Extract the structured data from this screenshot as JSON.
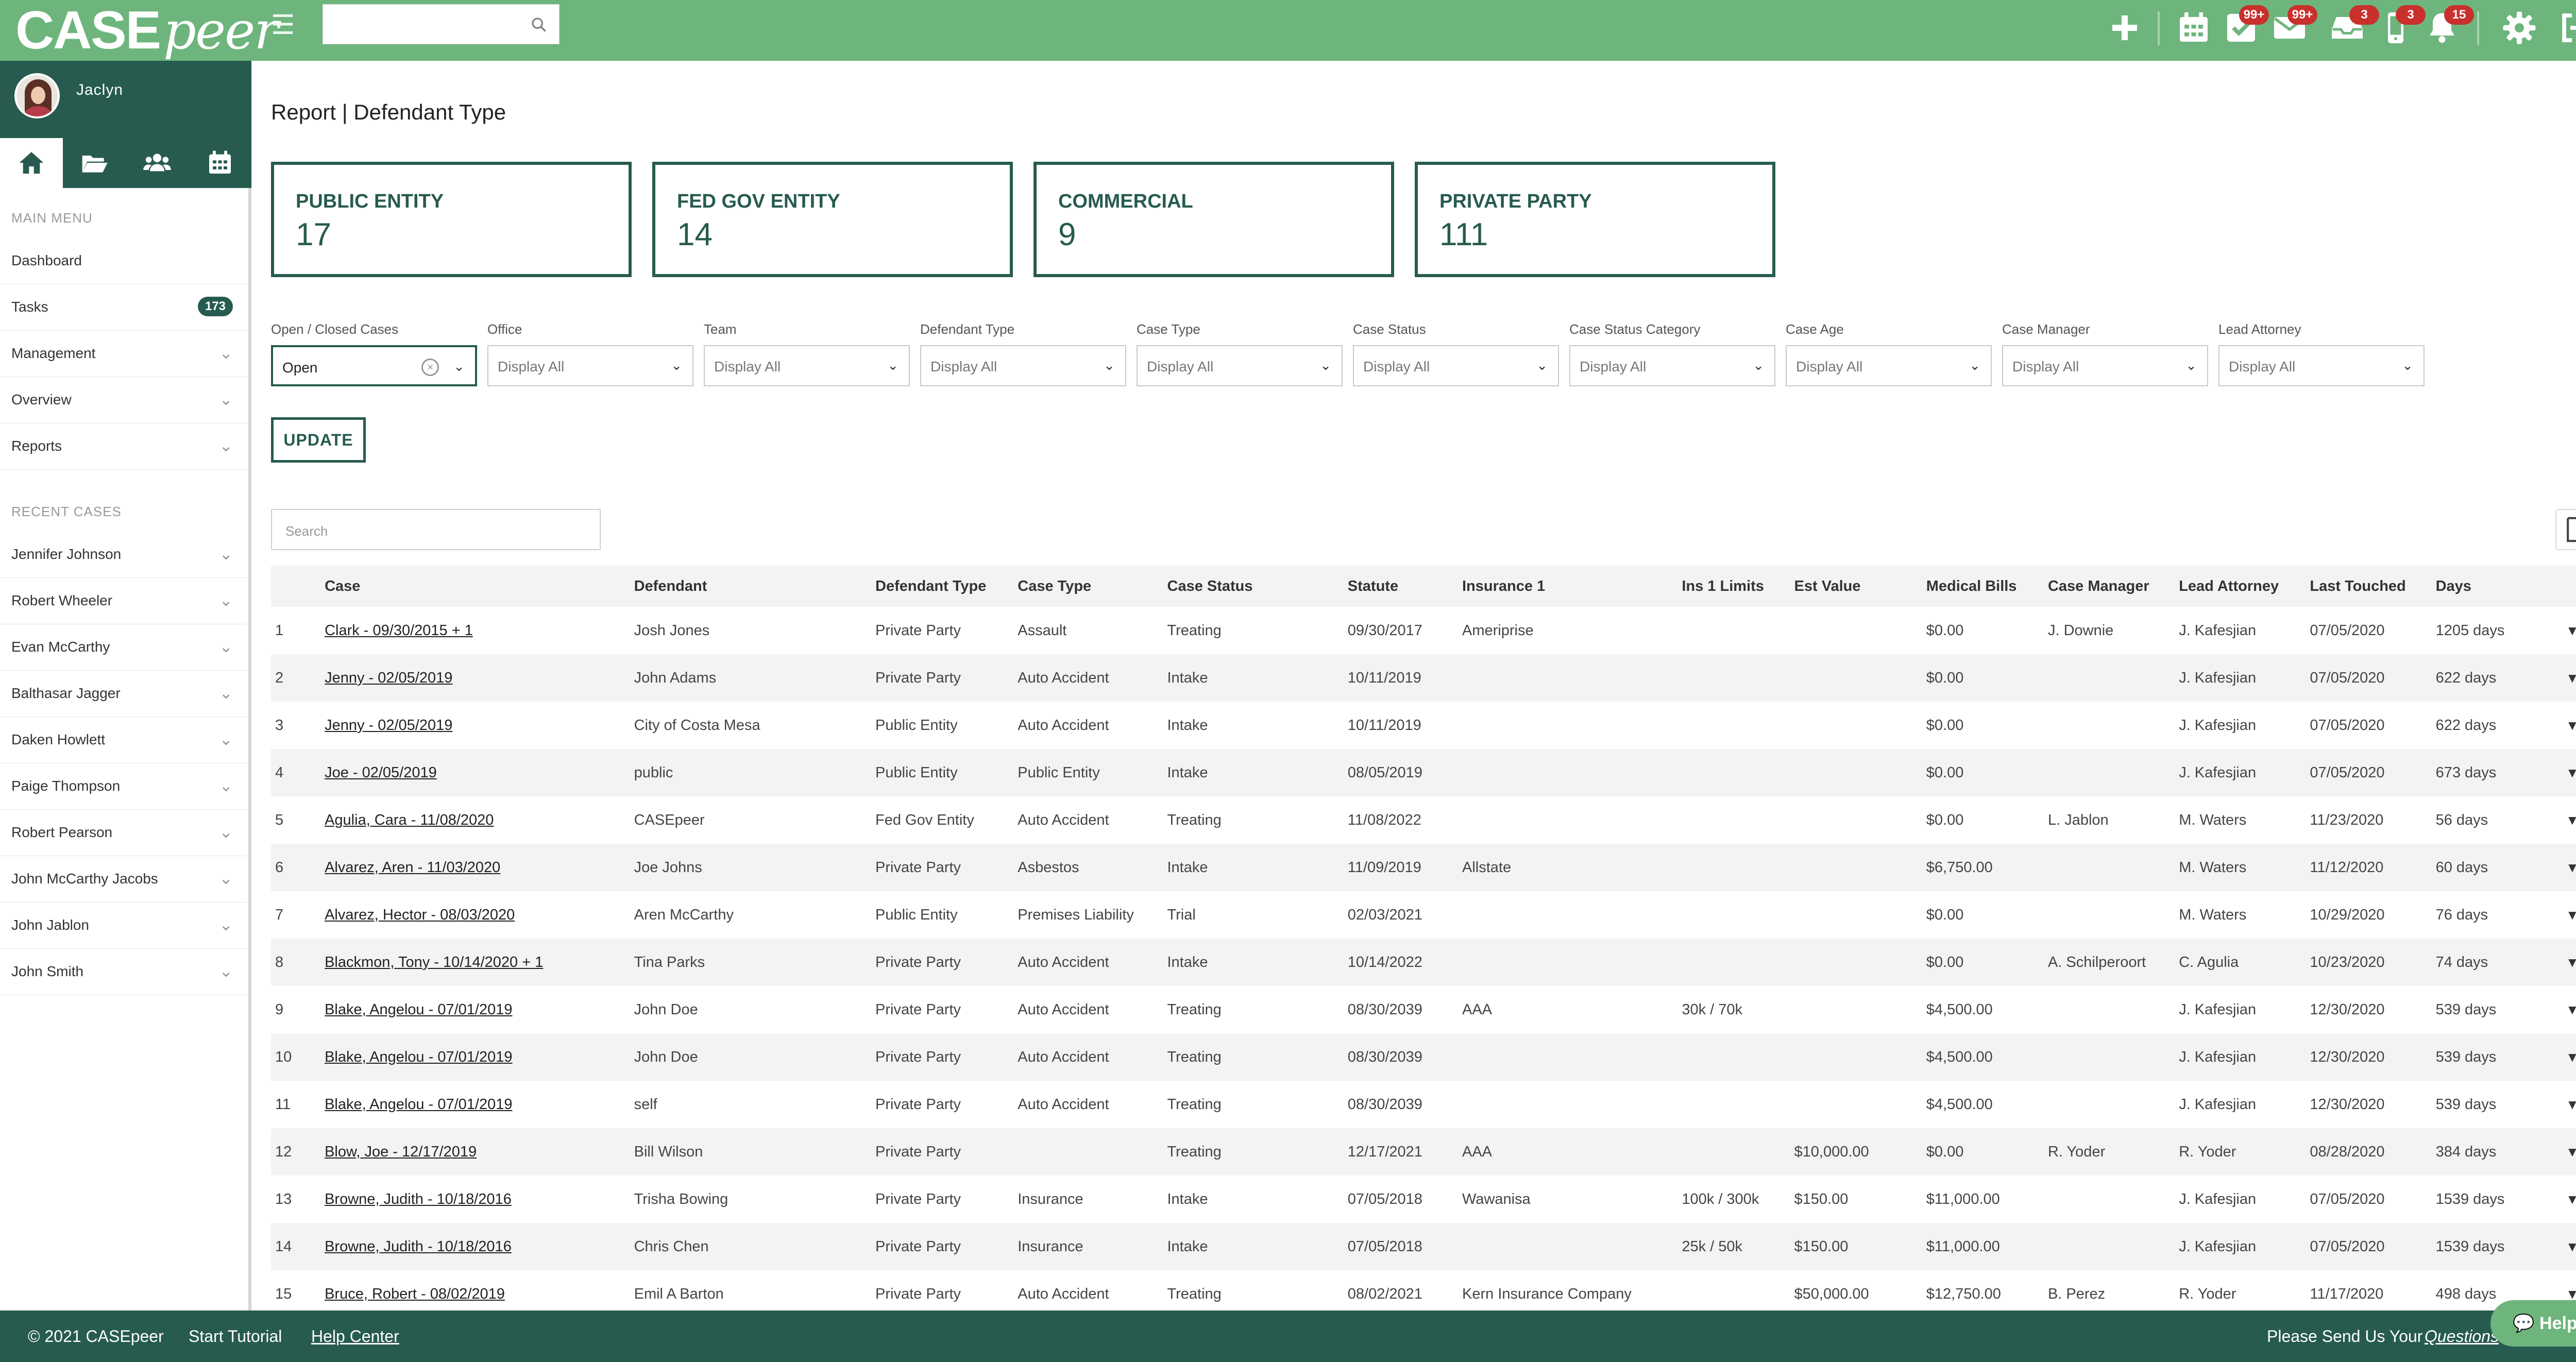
{
  "app": {
    "logo_case": "CASE",
    "logo_peer": "peer",
    "user_name": "Jaclyn"
  },
  "header": {
    "badges": {
      "tasks": "99+",
      "messages": "99+",
      "inbox": "3",
      "mobile": "3",
      "notifications": "15"
    },
    "icons": [
      "add-icon",
      "calendar-icon",
      "tasks-icon",
      "mail-icon",
      "inbox-icon",
      "mobile-icon",
      "bell-icon",
      "gear-icon",
      "logout-icon"
    ]
  },
  "sidebar": {
    "main_menu_label": "MAIN MENU",
    "menu": [
      {
        "label": "Dashboard"
      },
      {
        "label": "Tasks",
        "count": "173"
      },
      {
        "label": "Management"
      },
      {
        "label": "Overview"
      },
      {
        "label": "Reports"
      }
    ],
    "recent_label": "RECENT CASES",
    "recent": [
      "Jennifer Johnson",
      "Robert Wheeler",
      "Evan McCarthy",
      "Balthasar Jagger",
      "Daken Howlett",
      "Paige Thompson",
      "Robert Pearson",
      "John McCarthy Jacobs",
      "John Jablon",
      "John Smith"
    ]
  },
  "page": {
    "title": "Report | Defendant Type",
    "stats": [
      {
        "label": "PUBLIC ENTITY",
        "value": "17"
      },
      {
        "label": "FED GOV ENTITY",
        "value": "14"
      },
      {
        "label": "COMMERCIAL",
        "value": "9"
      },
      {
        "label": "PRIVATE PARTY",
        "value": "111"
      }
    ],
    "filters": [
      {
        "label": "Open / Closed Cases",
        "value": "Open"
      },
      {
        "label": "Office",
        "value": "Display All"
      },
      {
        "label": "Team",
        "value": "Display All"
      },
      {
        "label": "Defendant Type",
        "value": "Display All"
      },
      {
        "label": "Case Type",
        "value": "Display All"
      },
      {
        "label": "Case Status",
        "value": "Display All"
      },
      {
        "label": "Case Status Category",
        "value": "Display All"
      },
      {
        "label": "Case Age",
        "value": "Display All"
      },
      {
        "label": "Case Manager",
        "value": "Display All"
      },
      {
        "label": "Lead Attorney",
        "value": "Display All"
      }
    ],
    "update_label": "UPDATE",
    "search_placeholder": "Search"
  },
  "table": {
    "columns": [
      "",
      "Case",
      "Defendant",
      "Defendant Type",
      "Case Type",
      "Case Status",
      "Statute",
      "Insurance 1",
      "Ins 1 Limits",
      "Est Value",
      "Medical Bills",
      "Case Manager",
      "Lead Attorney",
      "Last Touched",
      "Days",
      ""
    ],
    "rows": [
      [
        "1",
        "Clark - 09/30/2015 + 1",
        "Josh Jones",
        "Private Party",
        "Assault",
        "Treating",
        "09/30/2017",
        "Ameriprise",
        "",
        "",
        "$0.00",
        "J. Downie",
        "J. Kafesjian",
        "07/05/2020",
        "1205 days"
      ],
      [
        "2",
        "Jenny - 02/05/2019",
        "John Adams",
        "Private Party",
        "Auto Accident",
        "Intake",
        "10/11/2019",
        "",
        "",
        "",
        "$0.00",
        "",
        "J. Kafesjian",
        "07/05/2020",
        "622 days"
      ],
      [
        "3",
        "Jenny - 02/05/2019",
        "City of Costa Mesa",
        "Public Entity",
        "Auto Accident",
        "Intake",
        "10/11/2019",
        "",
        "",
        "",
        "$0.00",
        "",
        "J. Kafesjian",
        "07/05/2020",
        "622 days"
      ],
      [
        "4",
        "Joe - 02/05/2019",
        "public",
        "Public Entity",
        "Public Entity",
        "Intake",
        "08/05/2019",
        "",
        "",
        "",
        "$0.00",
        "",
        "J. Kafesjian",
        "07/05/2020",
        "673 days"
      ],
      [
        "5",
        "Agulia, Cara - 11/08/2020",
        "CASEpeer",
        "Fed Gov Entity",
        "Auto Accident",
        "Treating",
        "11/08/2022",
        "",
        "",
        "",
        "$0.00",
        "L. Jablon",
        "M. Waters",
        "11/23/2020",
        "56 days"
      ],
      [
        "6",
        "Alvarez, Aren - 11/03/2020",
        "Joe Johns",
        "Private Party",
        "Asbestos",
        "Intake",
        "11/09/2019",
        "Allstate",
        "",
        "",
        "$6,750.00",
        "",
        "M. Waters",
        "11/12/2020",
        "60 days"
      ],
      [
        "7",
        "Alvarez, Hector - 08/03/2020",
        "Aren McCarthy",
        "Public Entity",
        "Premises Liability",
        "Trial",
        "02/03/2021",
        "",
        "",
        "",
        "$0.00",
        "",
        "M. Waters",
        "10/29/2020",
        "76 days"
      ],
      [
        "8",
        "Blackmon, Tony - 10/14/2020 + 1",
        "Tina Parks",
        "Private Party",
        "Auto Accident",
        "Intake",
        "10/14/2022",
        "",
        "",
        "",
        "$0.00",
        "A. Schilperoort",
        "C. Agulia",
        "10/23/2020",
        "74 days"
      ],
      [
        "9",
        "Blake, Angelou - 07/01/2019",
        "John Doe",
        "Private Party",
        "Auto Accident",
        "Treating",
        "08/30/2039",
        "AAA",
        "30k / 70k",
        "",
        "$4,500.00",
        "",
        "J. Kafesjian",
        "12/30/2020",
        "539 days"
      ],
      [
        "10",
        "Blake, Angelou - 07/01/2019",
        "John Doe",
        "Private Party",
        "Auto Accident",
        "Treating",
        "08/30/2039",
        "",
        "",
        "",
        "$4,500.00",
        "",
        "J. Kafesjian",
        "12/30/2020",
        "539 days"
      ],
      [
        "11",
        "Blake, Angelou - 07/01/2019",
        "self",
        "Private Party",
        "Auto Accident",
        "Treating",
        "08/30/2039",
        "",
        "",
        "",
        "$4,500.00",
        "",
        "J. Kafesjian",
        "12/30/2020",
        "539 days"
      ],
      [
        "12",
        "Blow, Joe - 12/17/2019",
        "Bill Wilson",
        "Private Party",
        "",
        "Treating",
        "12/17/2021",
        "AAA",
        "",
        "$10,000.00",
        "$0.00",
        "R. Yoder",
        "R. Yoder",
        "08/28/2020",
        "384 days"
      ],
      [
        "13",
        "Browne, Judith - 10/18/2016",
        "Trisha Bowing",
        "Private Party",
        "Insurance",
        "Intake",
        "07/05/2018",
        "Wawanisa",
        "100k / 300k",
        "$150.00",
        "$11,000.00",
        "",
        "J. Kafesjian",
        "07/05/2020",
        "1539 days"
      ],
      [
        "14",
        "Browne, Judith - 10/18/2016",
        "Chris Chen",
        "Private Party",
        "Insurance",
        "Intake",
        "07/05/2018",
        "",
        "25k / 50k",
        "$150.00",
        "$11,000.00",
        "",
        "J. Kafesjian",
        "07/05/2020",
        "1539 days"
      ],
      [
        "15",
        "Bruce, Robert - 08/02/2019",
        "Emil A Barton",
        "Private Party",
        "Auto Accident",
        "Treating",
        "08/02/2021",
        "Kern Insurance Company",
        "",
        "$50,000.00",
        "$12,750.00",
        "B. Perez",
        "R. Yoder",
        "11/17/2020",
        "498 days"
      ]
    ]
  },
  "footer": {
    "copyright": "© 2021 CASEpeer",
    "tutorial": "Start Tutorial",
    "help_center": "Help Center",
    "send_text": "Please Send Us Your",
    "send_link": "Questions",
    "help_button": "Help"
  },
  "colors": {
    "brand_green": "#6db57c",
    "dark_green": "#275b4f",
    "badge_red": "#c9302c"
  }
}
